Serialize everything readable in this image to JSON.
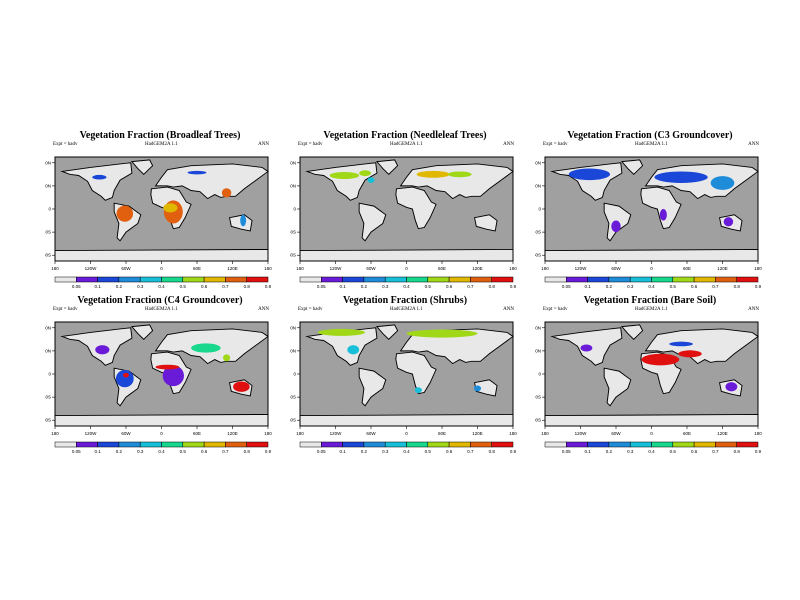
{
  "figure": {
    "panels": [
      {
        "title": "Vegetation Fraction (Broadleaf Trees)",
        "expt": "Expt = hadv",
        "model": "HadGEM2A 1.1",
        "season": "ANN"
      },
      {
        "title": "Vegetation Fraction (Needleleaf Trees)",
        "expt": "Expt = hadv",
        "model": "HadGEM2A 1.1",
        "season": "ANN"
      },
      {
        "title": "Vegetation Fraction (C3 Groundcover)",
        "expt": "Expt = hadv",
        "model": "HadGEM2A 1.1",
        "season": "ANN"
      },
      {
        "title": "Vegetation Fraction (C4 Groundcover)",
        "expt": "Expt = hadv",
        "model": "HadGEM2A 1.1",
        "season": "ANN"
      },
      {
        "title": "Vegetation Fraction (Shrubs)",
        "expt": "Expt = hadv",
        "model": "HadGEM2A 1.1",
        "season": "ANN"
      },
      {
        "title": "Vegetation Fraction (Bare Soil)",
        "expt": "Expt = hadv",
        "model": "HadGEM2A 1.1",
        "season": "ANN"
      }
    ],
    "lon_ticks": [
      "180",
      "120W",
      "60W",
      "0",
      "60E",
      "120E",
      "180"
    ],
    "lat_ticks": [
      "80N",
      "40N",
      "0",
      "40S",
      "80S"
    ],
    "colorbar": {
      "labels": [
        "0.05",
        "0.1",
        "0.2",
        "0.3",
        "0.4",
        "0.5",
        "0.6",
        "0.7",
        "0.8",
        "0.9"
      ],
      "colors": [
        "#e8e8e8",
        "#6a1bd8",
        "#1b47d8",
        "#1e8cd8",
        "#17c0d8",
        "#17d88c",
        "#a0d817",
        "#e0b800",
        "#e06010",
        "#e01010"
      ]
    },
    "ocean_color": "#a0a0a0",
    "land_color": "#e8e8e8"
  }
}
